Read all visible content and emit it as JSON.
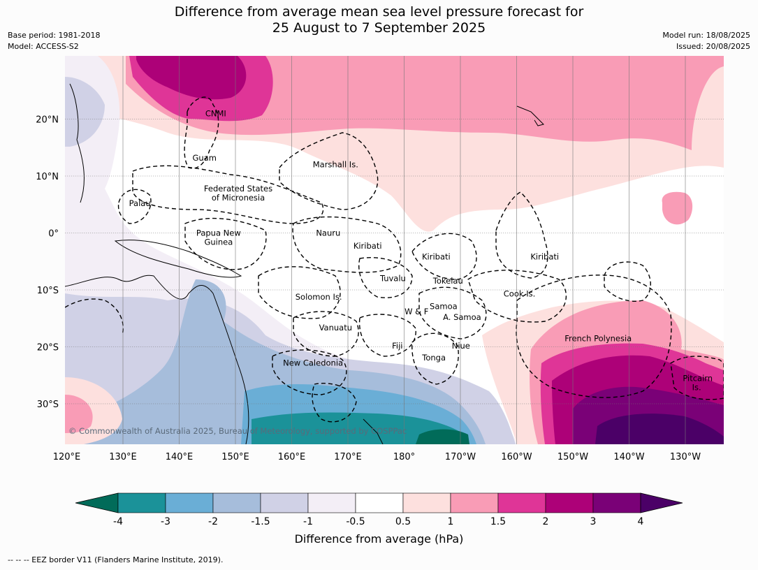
{
  "title": {
    "line1": "Difference from average mean sea level pressure forecast for",
    "line2": "25 August to 7 September 2025"
  },
  "meta_left": {
    "base_period": "Base period: 1981-2018",
    "model": "Model: ACCESS-S2"
  },
  "meta_right": {
    "model_run": "Model run: 18/08/2025",
    "issued": "Issued: 20/08/2025"
  },
  "map": {
    "lon_labels": [
      "120°E",
      "130°E",
      "140°E",
      "150°E",
      "160°E",
      "170°E",
      "180°",
      "170°W",
      "160°W",
      "150°W",
      "140°W",
      "130°W"
    ],
    "lat_labels": [
      "20°N",
      "10°N",
      "0°",
      "10°S",
      "20°S",
      "30°S"
    ],
    "regions": [
      {
        "name": "CNMI",
        "lon": 146.5,
        "lat": 21
      },
      {
        "name": "Guam",
        "lon": 144.5,
        "lat": 13.2
      },
      {
        "name": "Marshall Is.",
        "lon": 167.8,
        "lat": 12
      },
      {
        "name": "Federated States",
        "lon": 150.5,
        "lat": 7.8
      },
      {
        "name": "of Micronesia",
        "lon": 150.5,
        "lat": 6.2
      },
      {
        "name": "Palau",
        "lon": 133,
        "lat": 5.2
      },
      {
        "name": "Papua New",
        "lon": 147,
        "lat": 0
      },
      {
        "name": "Guinea",
        "lon": 147,
        "lat": -1.6
      },
      {
        "name": "Nauru",
        "lon": 166.5,
        "lat": 0
      },
      {
        "name": "Kiribati",
        "lon": 173.5,
        "lat": -2.3
      },
      {
        "name": "Kiribati",
        "lon": -174.3,
        "lat": -4.2
      },
      {
        "name": "Kiribati",
        "lon": -155,
        "lat": -4.2
      },
      {
        "name": "Tuvalu",
        "lon": 178,
        "lat": -8
      },
      {
        "name": "Tokelau",
        "lon": -172.2,
        "lat": -8.4
      },
      {
        "name": "Cook Is.",
        "lon": -159.5,
        "lat": -10.7
      },
      {
        "name": "Solomon Is.",
        "lon": 164.8,
        "lat": -11.2
      },
      {
        "name": "W & F",
        "lon": -177.8,
        "lat": -13.8
      },
      {
        "name": "Samoa",
        "lon": -173,
        "lat": -12.9
      },
      {
        "name": "A. Samoa",
        "lon": -169.7,
        "lat": -14.8
      },
      {
        "name": "Vanuatu",
        "lon": 167.8,
        "lat": -16.6
      },
      {
        "name": "Fiji",
        "lon": 178.8,
        "lat": -19.8
      },
      {
        "name": "Niue",
        "lon": -169.9,
        "lat": -19.8
      },
      {
        "name": "French Polynesia",
        "lon": -145.5,
        "lat": -18.5
      },
      {
        "name": "Tonga",
        "lon": -174.7,
        "lat": -21.9
      },
      {
        "name": "New Caledonia",
        "lon": 163.8,
        "lat": -22.8
      },
      {
        "name": "Pitcairn",
        "lon": -127.8,
        "lat": -25.5
      },
      {
        "name": "Is.",
        "lon": -128,
        "lat": -27.1
      }
    ],
    "copyright": "© Commonwealth of Australia 2025, Bureau of Meteorology, supported by COSPPac"
  },
  "colorbar": {
    "title": "Difference from average (hPa)",
    "tick_labels": [
      "-4",
      "-3",
      "-2",
      "-1.5",
      "-1",
      "-0.5",
      "0.5",
      "1",
      "1.5",
      "2",
      "3",
      "4"
    ],
    "colors": [
      "#016b59",
      "#1b9299",
      "#6aaed6",
      "#a6bddb",
      "#d0d1e6",
      "#f3eef6",
      "#ffffff",
      "#fde0de",
      "#f99cb6",
      "#df3597",
      "#ad0178",
      "#7a0177",
      "#4b0067"
    ]
  },
  "footer": "--  --  -- EEZ border V11 (Flanders Marine Institute, 2019)."
}
